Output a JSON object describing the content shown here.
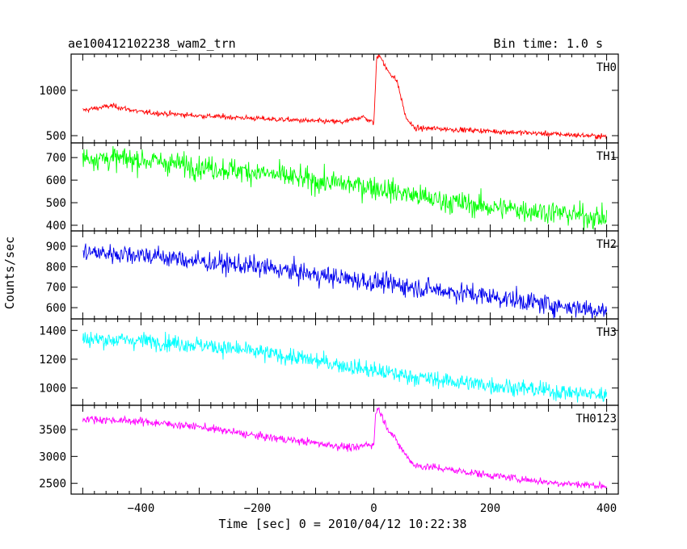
{
  "chart_data": {
    "type": "line",
    "title": "ae100412102238_wam2_trn",
    "subtitle": "Bin time: 1.0 s",
    "xlabel": "Time [sec] 0 = 2010/04/12 10:22:38",
    "ylabel": "Counts/sec",
    "xlim": [
      -520,
      420
    ],
    "xticks": [
      -400,
      -200,
      0,
      200,
      400
    ],
    "xtick_labels": [
      "−400",
      "−200",
      "0",
      "200",
      "400"
    ],
    "bin_time_s": 1.0,
    "panels": [
      {
        "name": "TH0",
        "color": "#ff0000",
        "ylim": [
          420,
          1400
        ],
        "yticks": [
          500,
          1000
        ],
        "ytick_labels": [
          "500",
          "1000"
        ],
        "noise": 22,
        "points": [
          [
            -500,
            780
          ],
          [
            -450,
            830
          ],
          [
            -400,
            760
          ],
          [
            -300,
            720
          ],
          [
            -200,
            690
          ],
          [
            -100,
            660
          ],
          [
            -50,
            650
          ],
          [
            -20,
            710
          ],
          [
            0,
            640
          ],
          [
            5,
            1360
          ],
          [
            10,
            1400
          ],
          [
            20,
            1250
          ],
          [
            40,
            1100
          ],
          [
            55,
            700
          ],
          [
            70,
            580
          ],
          [
            100,
            580
          ],
          [
            200,
            550
          ],
          [
            300,
            520
          ],
          [
            400,
            490
          ]
        ]
      },
      {
        "name": "TH1",
        "color": "#00ff00",
        "ylim": [
          375,
          765
        ],
        "yticks": [
          400,
          500,
          600,
          700
        ],
        "ytick_labels": [
          "400",
          "500",
          "600",
          "700"
        ],
        "noise": 40,
        "points": [
          [
            -500,
            700
          ],
          [
            -400,
            690
          ],
          [
            -300,
            660
          ],
          [
            -200,
            635
          ],
          [
            -100,
            595
          ],
          [
            0,
            570
          ],
          [
            100,
            515
          ],
          [
            200,
            480
          ],
          [
            300,
            460
          ],
          [
            400,
            430
          ]
        ]
      },
      {
        "name": "TH2",
        "color": "#0000ee",
        "ylim": [
          545,
          975
        ],
        "yticks": [
          600,
          700,
          800,
          900
        ],
        "ytick_labels": [
          "600",
          "700",
          "800",
          "900"
        ],
        "noise": 38,
        "points": [
          [
            -500,
            870
          ],
          [
            -400,
            860
          ],
          [
            -300,
            825
          ],
          [
            -200,
            800
          ],
          [
            -100,
            760
          ],
          [
            0,
            725
          ],
          [
            100,
            690
          ],
          [
            200,
            655
          ],
          [
            300,
            615
          ],
          [
            400,
            585
          ]
        ]
      },
      {
        "name": "TH3",
        "color": "#00ffff",
        "ylim": [
          880,
          1480
        ],
        "yticks": [
          1000,
          1200,
          1400
        ],
        "ytick_labels": [
          "1000",
          "1200",
          "1400"
        ],
        "noise": 45,
        "points": [
          [
            -500,
            1340
          ],
          [
            -400,
            1330
          ],
          [
            -300,
            1300
          ],
          [
            -200,
            1250
          ],
          [
            -100,
            1190
          ],
          [
            0,
            1120
          ],
          [
            100,
            1060
          ],
          [
            200,
            1020
          ],
          [
            300,
            980
          ],
          [
            400,
            950
          ]
        ]
      },
      {
        "name": "TH0123",
        "color": "#ff00ff",
        "ylim": [
          2300,
          3950
        ],
        "yticks": [
          2500,
          3000,
          3500
        ],
        "ytick_labels": [
          "2500",
          "3000",
          "3500"
        ],
        "noise": 55,
        "points": [
          [
            -500,
            3700
          ],
          [
            -400,
            3650
          ],
          [
            -300,
            3550
          ],
          [
            -200,
            3380
          ],
          [
            -100,
            3250
          ],
          [
            -30,
            3150
          ],
          [
            -10,
            3240
          ],
          [
            0,
            3200
          ],
          [
            3,
            3800
          ],
          [
            8,
            3900
          ],
          [
            20,
            3600
          ],
          [
            50,
            3100
          ],
          [
            70,
            2830
          ],
          [
            100,
            2800
          ],
          [
            200,
            2650
          ],
          [
            300,
            2520
          ],
          [
            400,
            2450
          ]
        ]
      }
    ]
  }
}
